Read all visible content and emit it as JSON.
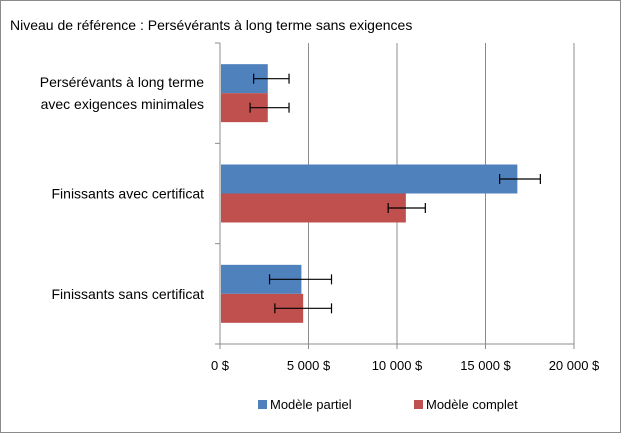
{
  "chart_data": {
    "type": "bar",
    "orientation": "horizontal",
    "title": "Niveau de référence : Persévérants à long terme sans exigences",
    "categories": [
      [
        "Persérévants à long terme",
        "avec exigences minimales"
      ],
      [
        "Finissants avec certificat"
      ],
      [
        "Finissants sans certificat"
      ]
    ],
    "series": [
      {
        "name": "Modèle partiel",
        "color": "#4f81bd",
        "values": [
          2700,
          16800,
          4600
        ],
        "err_low": [
          1900,
          15800,
          2800
        ],
        "err_high": [
          3900,
          18100,
          6300
        ]
      },
      {
        "name": "Modèle complet",
        "color": "#c0504d",
        "values": [
          2700,
          10500,
          4700
        ],
        "err_low": [
          1700,
          9500,
          3100
        ],
        "err_high": [
          3900,
          11600,
          6300
        ]
      }
    ],
    "xlim": [
      0,
      20000
    ],
    "xticks": [
      0,
      5000,
      10000,
      15000,
      20000
    ],
    "xtick_labels": [
      "0 $",
      "5 000 $",
      "10 000 $",
      "15 000 $",
      "20 000 $"
    ],
    "xlabel": "",
    "ylabel": "",
    "grid": "vertical",
    "legend": "bottom"
  }
}
